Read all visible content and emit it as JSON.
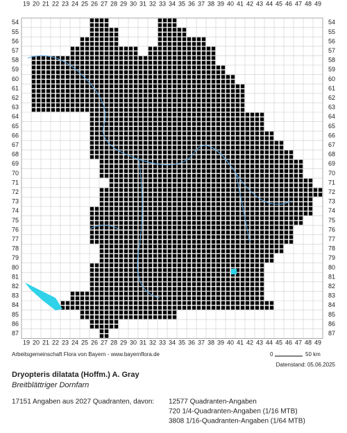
{
  "map": {
    "columns": [
      19,
      20,
      21,
      22,
      23,
      24,
      25,
      26,
      27,
      28,
      29,
      30,
      31,
      32,
      33,
      34,
      35,
      36,
      37,
      38,
      39,
      40,
      41,
      42,
      43,
      44,
      45,
      46,
      47,
      48,
      49
    ],
    "rows": [
      54,
      55,
      56,
      57,
      58,
      59,
      60,
      61,
      62,
      63,
      64,
      65,
      66,
      67,
      68,
      69,
      70,
      71,
      72,
      73,
      74,
      75,
      76,
      77,
      78,
      79,
      80,
      81,
      82,
      83,
      84,
      85,
      86,
      87
    ]
  },
  "footer": {
    "credit": "Arbeitsgemeinschaft Flora von Bayern - www.bayernflora.de",
    "scale_start": "0",
    "scale_end": "50 km",
    "date": "Datenstand: 05.06.2025"
  },
  "species": {
    "name": "Dryopteris dilatata (Hoffm.) A. Gray",
    "common_name": "Breitblättriger Dornfarn"
  },
  "stats": {
    "summary": "17151 Angaben aus 2027 Quadranten, davon:",
    "lines": [
      "12577 Quadranten-Angaben",
      "720 1/4-Quadranten-Angaben (1/16 MTB)",
      "3808 1/16-Quadranten-Angaben (1/64 MTB)"
    ]
  }
}
